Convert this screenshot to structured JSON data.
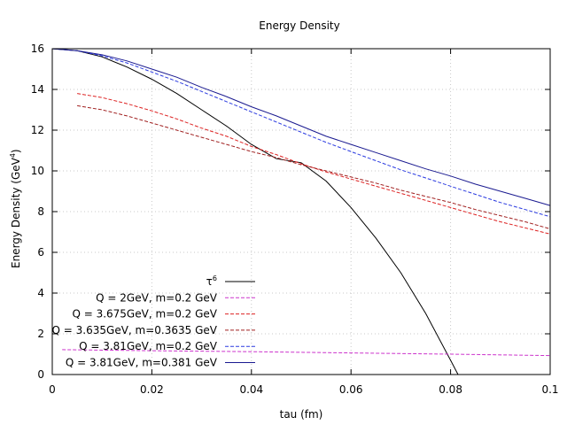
{
  "chart_data": {
    "type": "line",
    "title": "Energy Density",
    "xlabel": "tau (fm)",
    "ylabel": "Energy Density (GeV",
    "ylabel_sup": "4",
    "ylabel_tail": ")",
    "xlim": [
      0,
      0.1
    ],
    "ylim": [
      0,
      16
    ],
    "xticks": [
      0,
      0.02,
      0.04,
      0.06,
      0.08,
      0.1
    ],
    "xtick_labels": [
      "0",
      "0.02",
      "0.04",
      "0.06",
      "0.08",
      "0.1"
    ],
    "yticks": [
      0,
      2,
      4,
      6,
      8,
      10,
      12,
      14,
      16
    ],
    "ytick_labels": [
      "0",
      "2",
      "4",
      "6",
      "8",
      "10",
      "12",
      "14",
      "16"
    ],
    "grid": true,
    "legend_position": "bottom-left",
    "series": [
      {
        "name": "τ",
        "name_sup": "6",
        "color": "#000000",
        "dash": "solid",
        "x": [
          0,
          0.005,
          0.01,
          0.015,
          0.02,
          0.025,
          0.03,
          0.035,
          0.04,
          0.045,
          0.05,
          0.055,
          0.06,
          0.065,
          0.07,
          0.075,
          0.08,
          0.0815
        ],
        "y": [
          16,
          15.9,
          15.6,
          15.1,
          14.5,
          13.8,
          13.0,
          12.2,
          11.3,
          10.6,
          10.4,
          9.5,
          8.2,
          6.7,
          5.0,
          3.0,
          0.7,
          0
        ]
      },
      {
        "name": "Q = 2GeV, m=0.2 GeV",
        "color": "#cc33cc",
        "dash": "dashed",
        "x": [
          0.002,
          0.02,
          0.04,
          0.06,
          0.08,
          0.1
        ],
        "y": [
          1.22,
          1.17,
          1.12,
          1.06,
          1.0,
          0.93
        ]
      },
      {
        "name": "Q = 3.675GeV, m=0.2 GeV",
        "color": "#dd2222",
        "dash": "dashed",
        "x": [
          0.005,
          0.01,
          0.015,
          0.02,
          0.025,
          0.03,
          0.035,
          0.04,
          0.045,
          0.05,
          0.055,
          0.06,
          0.065,
          0.07,
          0.075,
          0.08,
          0.085,
          0.09,
          0.095,
          0.1
        ],
        "y": [
          13.8,
          13.6,
          13.3,
          12.95,
          12.55,
          12.1,
          11.7,
          11.2,
          10.8,
          10.35,
          9.95,
          9.6,
          9.25,
          8.9,
          8.55,
          8.2,
          7.85,
          7.5,
          7.2,
          6.9
        ]
      },
      {
        "name": "Q = 3.635GeV, m=0.3635 GeV",
        "color": "#a02020",
        "dash": "dashed",
        "x": [
          0.005,
          0.01,
          0.015,
          0.02,
          0.025,
          0.03,
          0.035,
          0.04,
          0.045,
          0.05,
          0.055,
          0.06,
          0.065,
          0.07,
          0.075,
          0.08,
          0.085,
          0.09,
          0.095,
          0.1
        ],
        "y": [
          13.2,
          13.0,
          12.7,
          12.35,
          12.0,
          11.65,
          11.3,
          10.95,
          10.65,
          10.3,
          10.0,
          9.7,
          9.4,
          9.05,
          8.75,
          8.45,
          8.1,
          7.8,
          7.5,
          7.15
        ]
      },
      {
        "name": "Q = 3.81GeV, m=0.2 GeV",
        "color": "#2a3ae0",
        "dash": "dashed",
        "x": [
          0,
          0.005,
          0.01,
          0.015,
          0.02,
          0.025,
          0.03,
          0.035,
          0.04,
          0.045,
          0.05,
          0.055,
          0.06,
          0.065,
          0.07,
          0.075,
          0.08,
          0.085,
          0.09,
          0.095,
          0.1
        ],
        "y": [
          16,
          15.9,
          15.65,
          15.3,
          14.85,
          14.4,
          13.9,
          13.4,
          12.9,
          12.4,
          11.9,
          11.4,
          10.95,
          10.5,
          10.05,
          9.65,
          9.25,
          8.85,
          8.45,
          8.1,
          7.75
        ]
      },
      {
        "name": "Q = 3.81GeV, m=0.381 GeV",
        "color": "#1a1a90",
        "dash": "solid",
        "x": [
          0,
          0.005,
          0.01,
          0.015,
          0.02,
          0.025,
          0.03,
          0.035,
          0.04,
          0.045,
          0.05,
          0.055,
          0.06,
          0.065,
          0.07,
          0.075,
          0.08,
          0.085,
          0.09,
          0.095,
          0.1
        ],
        "y": [
          16,
          15.9,
          15.7,
          15.4,
          15.0,
          14.6,
          14.1,
          13.65,
          13.15,
          12.7,
          12.2,
          11.7,
          11.3,
          10.9,
          10.5,
          10.1,
          9.75,
          9.35,
          9.0,
          8.65,
          8.3
        ]
      }
    ]
  }
}
